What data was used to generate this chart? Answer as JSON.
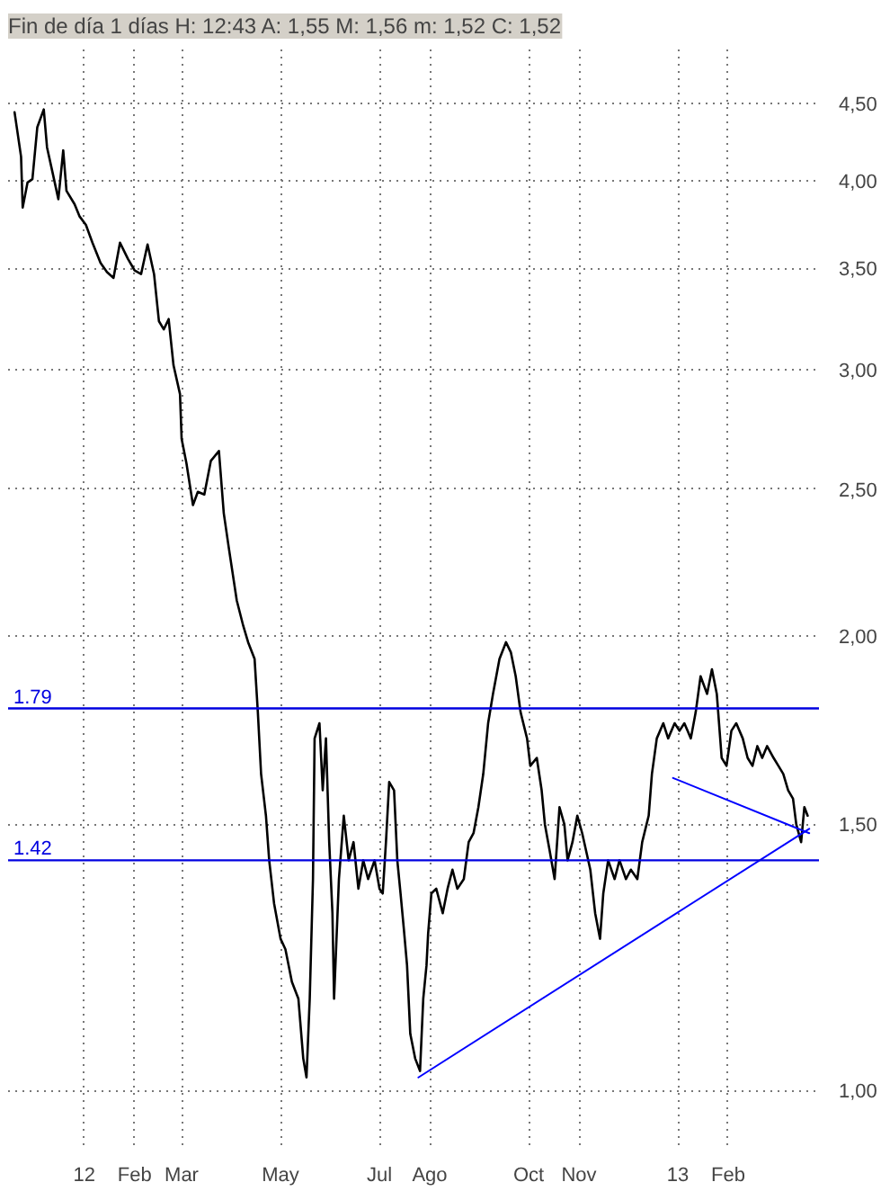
{
  "chart_data": {
    "type": "line",
    "title": "Fin de día 1 días H: 12:43 A: 1,55 M: 1,56 m: 1,52 C: 1,52",
    "log": "y",
    "grid": true,
    "marker": "none",
    "line_style": "solid",
    "xlim": [
      "2011-11-15",
      "2013-03-29"
    ],
    "xticks": [
      {
        "value": "2012-01-01",
        "label": "12"
      },
      {
        "value": "2012-02-01",
        "label": "Feb"
      },
      {
        "value": "2012-03-01",
        "label": "Mar"
      },
      {
        "value": "2012-05-01",
        "label": "May"
      },
      {
        "value": "2012-07-01",
        "label": "Jul"
      },
      {
        "value": "2012-08-01",
        "label": "Ago"
      },
      {
        "value": "2012-10-01",
        "label": "Oct"
      },
      {
        "value": "2012-11-01",
        "label": "Nov"
      },
      {
        "value": "2013-01-01",
        "label": "13"
      },
      {
        "value": "2013-02-01",
        "label": "Feb"
      }
    ],
    "ylim": [
      0.92,
      4.9
    ],
    "yticks": [
      {
        "value": 1,
        "label": "1,00"
      },
      {
        "value": 1.5,
        "label": "1,50"
      },
      {
        "value": 2,
        "label": "2,00"
      },
      {
        "value": 2.5,
        "label": "2,50"
      },
      {
        "value": 3,
        "label": "3,00"
      },
      {
        "value": 3.5,
        "label": "3,50"
      },
      {
        "value": 4,
        "label": "4,00"
      },
      {
        "value": 4.5,
        "label": "4,50"
      }
    ],
    "ref_lines": [
      {
        "axis": "y",
        "value": 1.79,
        "label": "1.79",
        "color": "#0000e0"
      },
      {
        "axis": "y",
        "value": 1.42,
        "label": "1.42",
        "color": "#0000e0"
      }
    ],
    "series": [
      {
        "color": "#000000",
        "x": [
          "2011-11-19",
          "2011-11-23",
          "2011-11-24",
          "2011-11-27",
          "2011-11-30",
          "2011-12-03",
          "2011-12-07",
          "2011-12-09",
          "2011-12-12",
          "2011-12-16",
          "2011-12-19",
          "2011-12-21",
          "2011-12-26",
          "2011-12-29",
          "2012-01-02",
          "2012-01-06",
          "2012-01-11",
          "2012-01-15",
          "2012-01-19",
          "2012-01-23",
          "2012-01-28",
          "2012-02-01",
          "2012-02-05",
          "2012-02-09",
          "2012-02-13",
          "2012-02-16",
          "2012-02-19",
          "2012-02-22",
          "2012-02-25",
          "2012-02-29",
          "2012-03-01",
          "2012-03-04",
          "2012-03-08",
          "2012-03-11",
          "2012-03-15",
          "2012-03-19",
          "2012-03-24",
          "2012-03-27",
          "2012-03-30",
          "2012-04-04",
          "2012-04-08",
          "2012-04-11",
          "2012-04-15",
          "2012-04-17",
          "2012-04-19",
          "2012-04-22",
          "2012-04-24",
          "2012-04-27",
          "2012-05-01",
          "2012-05-04",
          "2012-05-08",
          "2012-05-12",
          "2012-05-15",
          "2012-05-17",
          "2012-05-19",
          "2012-05-21",
          "2012-05-22",
          "2012-05-25",
          "2012-05-27",
          "2012-05-29",
          "2012-05-31",
          "2012-06-02",
          "2012-06-03",
          "2012-06-06",
          "2012-06-09",
          "2012-06-12",
          "2012-06-15",
          "2012-06-18",
          "2012-06-21",
          "2012-06-24",
          "2012-06-28",
          "2012-07-01",
          "2012-07-03",
          "2012-07-05",
          "2012-07-07",
          "2012-07-10",
          "2012-07-12",
          "2012-07-14",
          "2012-07-16",
          "2012-07-18",
          "2012-07-20",
          "2012-07-23",
          "2012-07-26",
          "2012-07-28",
          "2012-07-30",
          "2012-07-31",
          "2012-08-02",
          "2012-08-05",
          "2012-08-09",
          "2012-08-12",
          "2012-08-15",
          "2012-08-18",
          "2012-08-22",
          "2012-08-25",
          "2012-08-28",
          "2012-08-31",
          "2012-09-03",
          "2012-09-06",
          "2012-09-09",
          "2012-09-13",
          "2012-09-17",
          "2012-09-20",
          "2012-09-23",
          "2012-09-26",
          "2012-09-30",
          "2012-10-02",
          "2012-10-06",
          "2012-10-09",
          "2012-10-11",
          "2012-10-14",
          "2012-10-17",
          "2012-10-20",
          "2012-10-23",
          "2012-10-25",
          "2012-10-28",
          "2012-10-31",
          "2012-11-03",
          "2012-11-08",
          "2012-11-11",
          "2012-11-14",
          "2012-11-16",
          "2012-11-19",
          "2012-11-23",
          "2012-11-26",
          "2012-11-30",
          "2012-12-03",
          "2012-12-07",
          "2012-12-10",
          "2012-12-14",
          "2012-12-16",
          "2012-12-19",
          "2012-12-23",
          "2012-12-26",
          "2012-12-30",
          "2013-01-02",
          "2013-01-05",
          "2013-01-09",
          "2013-01-12",
          "2013-01-15",
          "2013-01-19",
          "2013-01-22",
          "2013-01-25",
          "2013-01-28",
          "2013-01-31",
          "2013-02-03",
          "2013-02-06",
          "2013-02-10",
          "2013-02-13",
          "2013-02-16",
          "2013-02-19",
          "2013-02-22",
          "2013-02-25",
          "2013-03-01",
          "2013-03-04",
          "2013-03-07",
          "2013-03-10",
          "2013-03-13",
          "2013-03-15",
          "2013-03-18",
          "2013-03-20",
          "2013-03-22"
        ],
        "values": [
          4.44,
          4.15,
          3.84,
          3.99,
          4.01,
          4.34,
          4.46,
          4.21,
          4.07,
          3.89,
          4.19,
          3.94,
          3.86,
          3.79,
          3.74,
          3.64,
          3.53,
          3.48,
          3.45,
          3.64,
          3.55,
          3.49,
          3.47,
          3.63,
          3.47,
          3.23,
          3.19,
          3.24,
          3.02,
          2.89,
          2.7,
          2.6,
          2.44,
          2.49,
          2.48,
          2.61,
          2.65,
          2.41,
          2.29,
          2.11,
          2.03,
          1.98,
          1.93,
          1.78,
          1.62,
          1.52,
          1.42,
          1.33,
          1.26,
          1.24,
          1.18,
          1.15,
          1.05,
          1.02,
          1.15,
          1.38,
          1.71,
          1.75,
          1.58,
          1.71,
          1.46,
          1.31,
          1.15,
          1.38,
          1.52,
          1.42,
          1.46,
          1.36,
          1.42,
          1.38,
          1.42,
          1.36,
          1.35,
          1.46,
          1.6,
          1.58,
          1.42,
          1.35,
          1.28,
          1.21,
          1.09,
          1.05,
          1.03,
          1.15,
          1.21,
          1.27,
          1.35,
          1.36,
          1.31,
          1.36,
          1.4,
          1.36,
          1.38,
          1.46,
          1.48,
          1.54,
          1.62,
          1.75,
          1.83,
          1.93,
          1.98,
          1.95,
          1.88,
          1.78,
          1.71,
          1.64,
          1.66,
          1.58,
          1.5,
          1.44,
          1.38,
          1.54,
          1.5,
          1.42,
          1.46,
          1.52,
          1.48,
          1.4,
          1.31,
          1.26,
          1.35,
          1.42,
          1.38,
          1.42,
          1.38,
          1.4,
          1.38,
          1.46,
          1.52,
          1.62,
          1.71,
          1.75,
          1.71,
          1.75,
          1.73,
          1.75,
          1.71,
          1.78,
          1.88,
          1.83,
          1.9,
          1.83,
          1.66,
          1.64,
          1.73,
          1.75,
          1.71,
          1.66,
          1.64,
          1.69,
          1.66,
          1.69,
          1.66,
          1.64,
          1.62,
          1.58,
          1.56,
          1.5,
          1.46,
          1.54,
          1.52
        ]
      },
      {
        "type": "line",
        "color": "#0000ff",
        "x": [
          "2012-07-25",
          "2013-03-23"
        ],
        "values": [
          1.02,
          1.49
        ]
      },
      {
        "type": "line",
        "color": "#0000ff",
        "x": [
          "2012-12-29",
          "2013-03-23"
        ],
        "values": [
          1.61,
          1.48
        ]
      }
    ]
  }
}
